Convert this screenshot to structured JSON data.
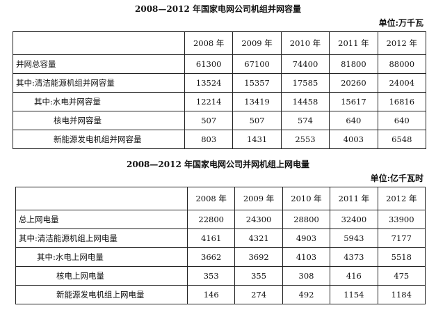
{
  "table1": {
    "title": "2008—2012 年国家电网公司机组并网容量",
    "unit": "单位:万千瓦",
    "headers": [
      "2008 年",
      "2009 年",
      "2010 年",
      "2011 年",
      "2012 年"
    ],
    "rows": [
      {
        "label": "并网总容量",
        "values": [
          "61300",
          "67100",
          "74400",
          "81800",
          "88000"
        ]
      },
      {
        "label": "其中:清洁能源机组并网容量",
        "values": [
          "13524",
          "15357",
          "17585",
          "20260",
          "24004"
        ]
      },
      {
        "label": "其中:水电并网容量",
        "values": [
          "12214",
          "13419",
          "14458",
          "15617",
          "16816"
        ]
      },
      {
        "label": "核电并网容量",
        "values": [
          "507",
          "507",
          "574",
          "640",
          "640"
        ]
      },
      {
        "label": "新能源发电机组并网容量",
        "values": [
          "803",
          "1431",
          "2553",
          "4003",
          "6548"
        ]
      }
    ]
  },
  "table2": {
    "title": "2008—2012 年国家电网公司并网机组上网电量",
    "unit": "单位:亿千瓦时",
    "headers": [
      "2008 年",
      "2009 年",
      "2010 年",
      "2011 年",
      "2012 年"
    ],
    "rows": [
      {
        "label": "总上网电量",
        "values": [
          "22800",
          "24300",
          "28800",
          "32400",
          "33900"
        ]
      },
      {
        "label": "其中:清洁能源机组上网电量",
        "values": [
          "4161",
          "4321",
          "4903",
          "5943",
          "7177"
        ]
      },
      {
        "label": "其中:水电上网电量",
        "values": [
          "3662",
          "3692",
          "4103",
          "4373",
          "5518"
        ]
      },
      {
        "label": "核电上网电量",
        "values": [
          "353",
          "355",
          "308",
          "416",
          "475"
        ]
      },
      {
        "label": "新能源发电机组上网电量",
        "values": [
          "146",
          "274",
          "492",
          "1154",
          "1184"
        ]
      }
    ]
  }
}
